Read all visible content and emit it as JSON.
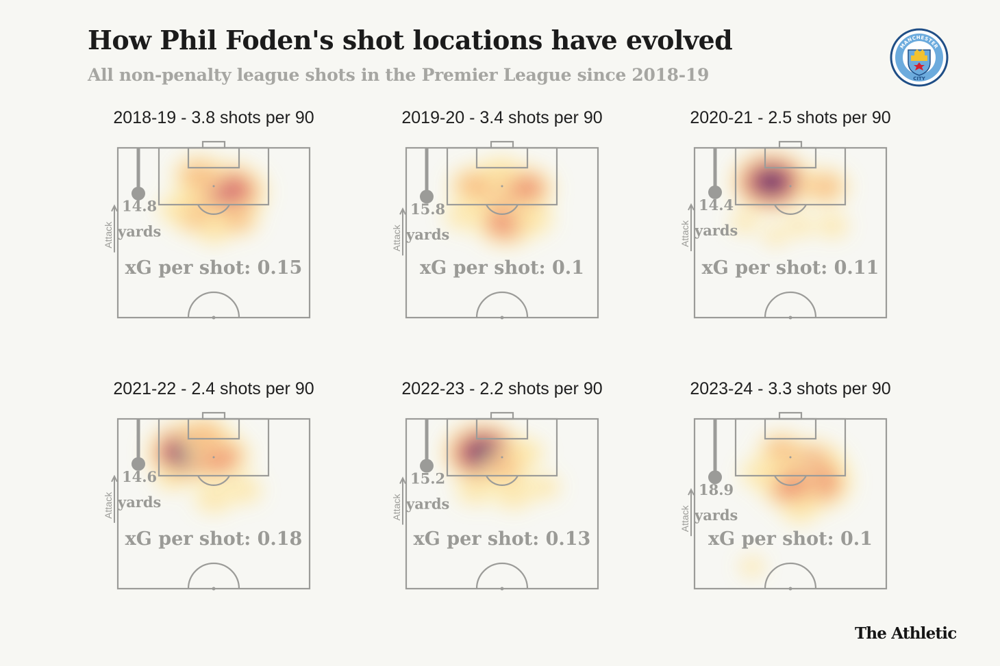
{
  "header": {
    "title": "How Phil Foden's shot locations have evolved",
    "subtitle": "All non-penalty league shots in the Premier League since 2018-19"
  },
  "badge": {
    "icon": "manchester-city-crest-icon",
    "top_text": "MANCHESTER",
    "bottom_text": "CITY",
    "color": "#2b6dac"
  },
  "brand": {
    "name": "The Athletic"
  },
  "colors": {
    "background": "#f7f7f3",
    "pitch_lines": "#9b9b98",
    "annotation_text": "#9a9a96",
    "heat_scale": [
      "#fff5a8",
      "#fdd38a",
      "#f49a5e",
      "#e4574a",
      "#bd2d5c",
      "#6d1f7a",
      "#24103f"
    ]
  },
  "chart_data": [
    {
      "type": "heatmap",
      "title": "2018-19 - 3.8 shots per 90",
      "avg_distance_value": "14.8",
      "avg_distance_unit": "yards",
      "avg_distance_yards": 14.8,
      "direction_label": "Attack",
      "xg_text": "xG per shot: 0.15",
      "xg_per_shot": 0.15,
      "hotspots": [
        {
          "x": 0.5,
          "y": 0.28,
          "w": 0.9
        },
        {
          "x": 0.58,
          "y": 0.26,
          "w": 0.95
        },
        {
          "x": 0.42,
          "y": 0.16,
          "w": 0.6
        },
        {
          "x": 0.4,
          "y": 0.4,
          "w": 0.55
        },
        {
          "x": 0.62,
          "y": 0.42,
          "w": 0.5
        },
        {
          "x": 0.3,
          "y": 0.36,
          "w": 0.35
        },
        {
          "x": 0.5,
          "y": 0.5,
          "w": 0.3
        }
      ]
    },
    {
      "type": "heatmap",
      "title": "2019-20 - 3.4 shots per 90",
      "avg_distance_value": "15.8",
      "avg_distance_unit": "yards",
      "avg_distance_yards": 15.8,
      "direction_label": "Attack",
      "xg_text": "xG per shot: 0.1",
      "xg_per_shot": 0.1,
      "hotspots": [
        {
          "x": 0.47,
          "y": 0.24,
          "w": 0.85
        },
        {
          "x": 0.62,
          "y": 0.24,
          "w": 0.7
        },
        {
          "x": 0.35,
          "y": 0.22,
          "w": 0.55
        },
        {
          "x": 0.52,
          "y": 0.44,
          "w": 0.75
        },
        {
          "x": 0.3,
          "y": 0.4,
          "w": 0.4
        },
        {
          "x": 0.66,
          "y": 0.42,
          "w": 0.45
        },
        {
          "x": 0.5,
          "y": 0.14,
          "w": 0.4
        }
      ]
    },
    {
      "type": "heatmap",
      "title": "2020-21 - 2.5 shots per 90",
      "avg_distance_value": "14.4",
      "avg_distance_unit": "yards",
      "avg_distance_yards": 14.4,
      "direction_label": "Attack",
      "xg_text": "xG per shot: 0.11",
      "xg_per_shot": 0.11,
      "hotspots": [
        {
          "x": 0.4,
          "y": 0.2,
          "w": 1.0,
          "peak": true
        },
        {
          "x": 0.68,
          "y": 0.23,
          "w": 0.55
        },
        {
          "x": 0.26,
          "y": 0.44,
          "w": 0.25
        },
        {
          "x": 0.55,
          "y": 0.46,
          "w": 0.25
        },
        {
          "x": 0.72,
          "y": 0.46,
          "w": 0.3
        },
        {
          "x": 0.42,
          "y": 0.52,
          "w": 0.2
        }
      ]
    },
    {
      "type": "heatmap",
      "title": "2021-22 - 2.4 shots per 90",
      "avg_distance_value": "14.6",
      "avg_distance_unit": "yards",
      "avg_distance_yards": 14.6,
      "direction_label": "Attack",
      "xg_text": "xG per shot: 0.18",
      "xg_per_shot": 0.18,
      "hotspots": [
        {
          "x": 0.36,
          "y": 0.2,
          "w": 1.0,
          "peak": true
        },
        {
          "x": 0.52,
          "y": 0.22,
          "w": 0.8
        },
        {
          "x": 0.45,
          "y": 0.1,
          "w": 0.6
        },
        {
          "x": 0.5,
          "y": 0.47,
          "w": 0.4
        },
        {
          "x": 0.66,
          "y": 0.42,
          "w": 0.35
        },
        {
          "x": 0.28,
          "y": 0.35,
          "w": 0.3
        }
      ]
    },
    {
      "type": "heatmap",
      "title": "2022-23 - 2.2 shots per 90",
      "avg_distance_value": "15.2",
      "avg_distance_unit": "yards",
      "avg_distance_yards": 15.2,
      "direction_label": "Attack",
      "xg_text": "xG per shot: 0.13",
      "xg_per_shot": 0.13,
      "hotspots": [
        {
          "x": 0.4,
          "y": 0.2,
          "w": 1.0,
          "peak": true
        },
        {
          "x": 0.52,
          "y": 0.28,
          "w": 0.55
        },
        {
          "x": 0.62,
          "y": 0.2,
          "w": 0.4
        },
        {
          "x": 0.36,
          "y": 0.42,
          "w": 0.4
        },
        {
          "x": 0.56,
          "y": 0.44,
          "w": 0.45
        },
        {
          "x": 0.72,
          "y": 0.4,
          "w": 0.3
        }
      ]
    },
    {
      "type": "heatmap",
      "title": "2023-24 - 3.3 shots per 90",
      "avg_distance_value": "18.9",
      "avg_distance_unit": "yards",
      "avg_distance_yards": 18.9,
      "direction_label": "Attack",
      "xg_text": "xG per shot: 0.1",
      "xg_per_shot": 0.1,
      "hotspots": [
        {
          "x": 0.6,
          "y": 0.3,
          "w": 0.95
        },
        {
          "x": 0.64,
          "y": 0.38,
          "w": 0.85
        },
        {
          "x": 0.5,
          "y": 0.4,
          "w": 0.7
        },
        {
          "x": 0.45,
          "y": 0.18,
          "w": 0.5
        },
        {
          "x": 0.35,
          "y": 0.32,
          "w": 0.45
        },
        {
          "x": 0.55,
          "y": 0.54,
          "w": 0.35
        },
        {
          "x": 0.3,
          "y": 0.87,
          "w": 0.2
        }
      ]
    }
  ]
}
